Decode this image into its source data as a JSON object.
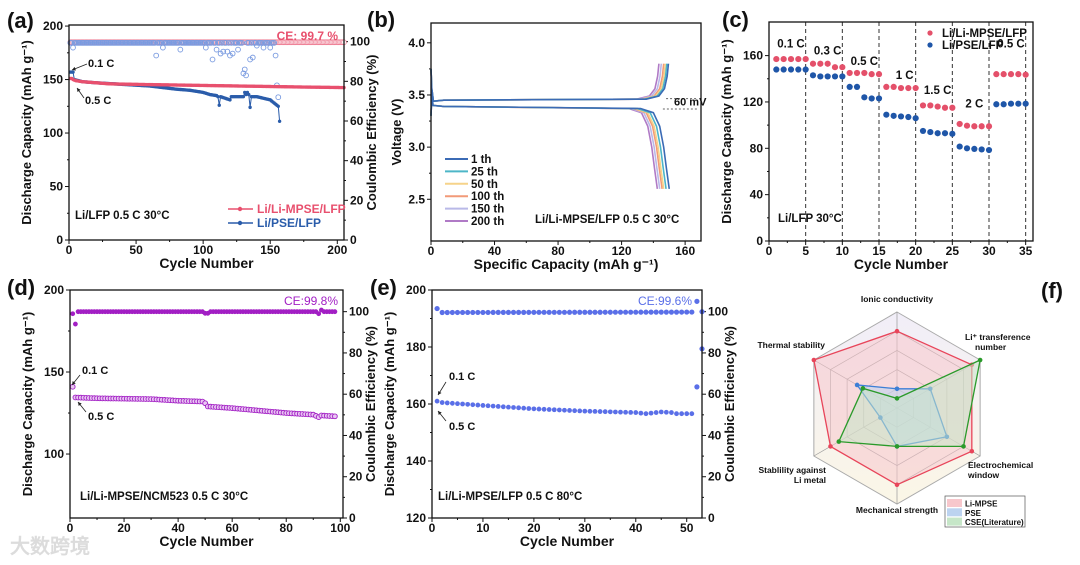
{
  "watermark": "大数跨境",
  "chart_data": [
    {
      "panel": "(a)",
      "type": "scatter",
      "xlabel": "Cycle Number",
      "ylabel": "Discharge Capacity (mAh g⁻¹)",
      "ylabel_right": "Coulombic Efficiency (%)",
      "xlim": [
        0,
        205
      ],
      "ylim": [
        0,
        201
      ],
      "ylim_right": [
        0,
        108.4
      ],
      "xticks": [
        "0",
        "50",
        "100",
        "150",
        "200"
      ],
      "yticks": [
        "0",
        "50",
        "100",
        "150",
        "200"
      ],
      "yticks_right": [
        "0",
        "20",
        "40",
        "60",
        "80",
        "100"
      ],
      "legend": [
        "Li/Li-MPSE/LFP",
        "Li/PSE/LFP"
      ],
      "legend_placement": "bottom-right",
      "annotations": {
        "ce": "CE: 99.7 %",
        "rate1": "0.1 C",
        "rate2": "0.5 C",
        "condition": "Li/LFP   0.5 C   30°C"
      },
      "colors": {
        "mpse": "#e8506e",
        "pse": "#2a5caa"
      },
      "series": [
        {
          "name": "Li/Li-MPSE/LFP capacity",
          "points": [
            [
              1,
              151
            ],
            [
              2,
              151
            ],
            [
              3,
              150
            ],
            [
              5,
              149
            ],
            [
              10,
              148
            ],
            [
              20,
              147
            ],
            [
              30,
              146
            ],
            [
              50,
              145.5
            ],
            [
              75,
              145
            ],
            [
              100,
              144.5
            ],
            [
              125,
              144
            ],
            [
              150,
              143.5
            ],
            [
              175,
              143
            ],
            [
              205,
              142.5
            ]
          ]
        },
        {
          "name": "Li/PSE/LFP capacity",
          "points": [
            [
              1,
              157
            ],
            [
              2,
              157
            ],
            [
              3,
              157
            ],
            [
              4,
              150
            ],
            [
              10,
              148
            ],
            [
              20,
              147
            ],
            [
              40,
              145.5
            ],
            [
              60,
              144
            ],
            [
              80,
              141
            ],
            [
              90,
              140
            ],
            [
              100,
              138
            ],
            [
              105,
              136
            ],
            [
              110,
              135
            ],
            [
              111,
              134
            ],
            [
              112,
              126
            ],
            [
              113,
              134
            ],
            [
              120,
              131
            ],
            [
              121,
              134
            ],
            [
              130,
              134
            ],
            [
              131,
              138
            ],
            [
              132,
              136
            ],
            [
              133,
              138
            ],
            [
              134,
              136
            ],
            [
              135,
              124
            ],
            [
              136,
              134
            ],
            [
              140,
              134
            ],
            [
              150,
              131
            ],
            [
              153,
              128
            ],
            [
              156,
              125
            ],
            [
              157,
              111
            ]
          ]
        },
        {
          "name": "Li/Li-MPSE/LFP CE",
          "typical": 99.7,
          "cycles": 205
        },
        {
          "name": "Li/PSE/LFP CE",
          "typical": 99.4,
          "cycles": 156,
          "outliers": [
            [
              3,
              97
            ],
            [
              65,
              93
            ],
            [
              70,
              97
            ],
            [
              83,
              96
            ],
            [
              102,
              97
            ],
            [
              107,
              91
            ],
            [
              110,
              96
            ],
            [
              113,
              94
            ],
            [
              115,
              95
            ],
            [
              118,
              95
            ],
            [
              120,
              93
            ],
            [
              122,
              94
            ],
            [
              126,
              96
            ],
            [
              130,
              84
            ],
            [
              131,
              86
            ],
            [
              132,
              83
            ],
            [
              135,
              91
            ],
            [
              137,
              92
            ],
            [
              140,
              98
            ],
            [
              145,
              97
            ],
            [
              150,
              97
            ],
            [
              154,
              93
            ],
            [
              155,
              78
            ],
            [
              156,
              72
            ]
          ]
        }
      ]
    },
    {
      "panel": "(b)",
      "type": "line",
      "xlabel": "Specific Capacity (mAh g⁻¹)",
      "ylabel": "Voltage (V)",
      "xlim": [
        0,
        170
      ],
      "ylim": [
        2.1,
        4.19
      ],
      "xticks": [
        "0",
        "40",
        "80",
        "120",
        "160"
      ],
      "yticks": [
        "2.5",
        "3.0",
        "3.5",
        "4.0"
      ],
      "legend_placement": "bottom-left",
      "annotations": {
        "polarization": "60 mV",
        "condition": "Li/Li-MPSE/LFP   0.5 C   30°C"
      },
      "charge_plateau_v": 3.45,
      "discharge_plateau_v": 3.39,
      "series": [
        {
          "name": "1 th",
          "color": "#3b6bb5",
          "charge_end": 149.5,
          "discharge_end": 150
        },
        {
          "name": "25 th",
          "color": "#4db6c8",
          "charge_end": 148.5,
          "discharge_end": 148
        },
        {
          "name": "50 th",
          "color": "#f6d38a",
          "charge_end": 147.5,
          "discharge_end": 146.5
        },
        {
          "name": "100 th",
          "color": "#f29a78",
          "charge_end": 146.5,
          "discharge_end": 145.5
        },
        {
          "name": "150 th",
          "color": "#b9b9e8",
          "charge_end": 145,
          "discharge_end": 144
        },
        {
          "name": "200 th",
          "color": "#b07ac6",
          "charge_end": 143.5,
          "discharge_end": 142.5
        }
      ]
    },
    {
      "panel": "(c)",
      "type": "scatter",
      "xlabel": "Cycle Number",
      "ylabel": "Discharge Capacity (mAh g⁻¹)",
      "xlim": [
        0,
        36
      ],
      "ylim": [
        0,
        189
      ],
      "xticks": [
        "0",
        "5",
        "10",
        "15",
        "20",
        "25",
        "30",
        "35"
      ],
      "yticks": [
        "0",
        "40",
        "80",
        "120",
        "160"
      ],
      "legend_placement": "top-right",
      "rates": [
        "0.1 C",
        "0.3 C",
        "0.5 C",
        "1 C",
        "1.5 C",
        "2 C",
        "0.5 C"
      ],
      "annotations": {
        "condition": "Li/LFP    30°C"
      },
      "series": [
        {
          "name": "Li/Li-MPSE/LFP",
          "color": "#e4506a",
          "values": [
            157,
            157,
            157,
            157,
            157,
            153,
            153,
            153,
            150,
            150,
            145,
            145,
            145,
            144,
            144,
            133,
            133,
            132,
            132,
            132,
            117,
            117,
            116,
            115,
            115,
            101,
            99.5,
            99,
            99,
            99,
            144,
            144,
            144,
            144,
            143.5
          ]
        },
        {
          "name": "Li/PSE/LFP",
          "color": "#1f56a8",
          "values": [
            148,
            148,
            148,
            148,
            148,
            143,
            142,
            142,
            142,
            142,
            133,
            133,
            124,
            123,
            123,
            109,
            108,
            107.5,
            107,
            106,
            95,
            94,
            93,
            93,
            92.5,
            81.5,
            80,
            79.5,
            79,
            78.5,
            118,
            118,
            118.5,
            118.5,
            118.5
          ]
        }
      ]
    },
    {
      "panel": "(d)",
      "type": "scatter",
      "xlabel": "Cycle Number",
      "ylabel": "Discharge Capacity (mAh g⁻¹)",
      "ylabel_right": "Coulombic Efficiency (%)",
      "xlim": [
        0,
        101
      ],
      "ylim": [
        61,
        200
      ],
      "ylim_right": [
        0,
        110.5
      ],
      "xticks": [
        "0",
        "20",
        "40",
        "60",
        "80",
        "100"
      ],
      "yticks": [
        "100",
        "150",
        "200"
      ],
      "yticks_right": [
        "0",
        "20",
        "40",
        "60",
        "80",
        "100"
      ],
      "annotations": {
        "ce": "CE:99.8%",
        "rate1": "0.1 C",
        "rate2": "0.5 C",
        "condition": "Li/Li-MPSE/NCM523   0.5 C  30°C"
      },
      "color": "#a21fc4",
      "series": [
        {
          "name": "capacity",
          "points": [
            [
              1,
              141
            ],
            [
              2,
              134.5
            ],
            [
              10,
              134
            ],
            [
              30,
              133.5
            ],
            [
              40,
              132.5
            ],
            [
              49,
              132
            ],
            [
              50,
              131
            ],
            [
              51,
              129
            ],
            [
              60,
              128
            ],
            [
              70,
              126.5
            ],
            [
              80,
              125
            ],
            [
              90,
              124
            ],
            [
              92,
              122.5
            ],
            [
              93,
              123.5
            ],
            [
              98,
              123
            ]
          ]
        },
        {
          "name": "CE",
          "points": [
            [
              1,
              99
            ],
            [
              2,
              94
            ],
            [
              3,
              100
            ],
            [
              49,
              100
            ],
            [
              50,
              99.2
            ],
            [
              51,
              99.2
            ],
            [
              52,
              100
            ],
            [
              91,
              100
            ],
            [
              92,
              99
            ],
            [
              93,
              100.8
            ],
            [
              94,
              100
            ],
            [
              98,
              100
            ]
          ]
        }
      ]
    },
    {
      "panel": "(e)",
      "type": "scatter",
      "xlabel": "Cycle Number",
      "ylabel": "Discharge Capacity (mAh g⁻¹)",
      "ylabel_right": "Coulombic Efficiency (%)",
      "xlim": [
        0,
        53
      ],
      "ylim": [
        120,
        200
      ],
      "ylim_right": [
        0,
        110.5
      ],
      "xticks": [
        "0",
        "10",
        "20",
        "30",
        "40",
        "50"
      ],
      "yticks": [
        "120",
        "140",
        "160",
        "180",
        "200"
      ],
      "yticks_right": [
        "0",
        "20",
        "40",
        "60",
        "80",
        "100"
      ],
      "annotations": {
        "ce": "CE:99.6%",
        "rate1": "0.1 C",
        "rate2": "0.5 C",
        "condition": "Li/Li-MPSE/LFP   0.5 C  80°C"
      },
      "color": "#5a6fe8",
      "series": [
        {
          "name": "capacity",
          "points": [
            [
              1,
              161
            ],
            [
              2,
              160.5
            ],
            [
              10,
              159.5
            ],
            [
              20,
              158.3
            ],
            [
              30,
              157.5
            ],
            [
              40,
              157
            ],
            [
              42,
              156.6
            ],
            [
              45,
              157.2
            ],
            [
              47,
              157
            ],
            [
              48,
              156.6
            ],
            [
              51,
              156.6
            ]
          ],
          "extra": [
            [
              52,
              166
            ]
          ]
        },
        {
          "name": "CE",
          "points": [
            [
              1,
              101.5
            ],
            [
              2,
              99.6
            ],
            [
              51,
              99.8
            ]
          ],
          "extra": [
            [
              52,
              105
            ],
            [
              53,
              100
            ],
            [
              53,
              82
            ]
          ]
        }
      ]
    },
    {
      "panel": "(f)",
      "type": "radar",
      "axes": [
        "Ionic conductivity",
        "Li⁺ transference number",
        "Electrochemical window",
        "Mechanical strength",
        "Stablility against Li metal",
        "Thermal stability"
      ],
      "scale_max": 5,
      "series": [
        {
          "name": "Li-MPSE",
          "color": "#e8455a",
          "fill": "#f7c7cc",
          "values": [
            4,
            4.5,
            4.5,
            4,
            4,
            5
          ]
        },
        {
          "name": "PSE",
          "color": "#3c7fd6",
          "fill": "#bcd3f0",
          "values": [
            1,
            2,
            3,
            2,
            1,
            2.4
          ]
        },
        {
          "name": "CSE(Literature)",
          "color": "#2a9a2a",
          "fill": "#c6e6c8",
          "values": [
            0.5,
            5,
            4,
            2,
            3.5,
            2.05
          ]
        }
      ]
    }
  ]
}
